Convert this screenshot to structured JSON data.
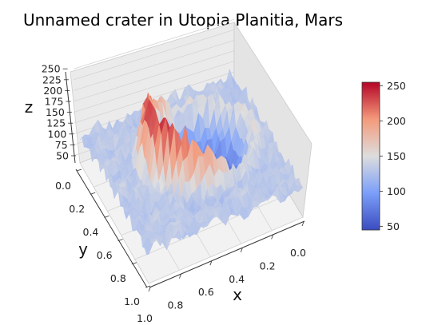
{
  "chart_data": {
    "type": "surface",
    "title": "Unnamed crater in Utopia Planitia, Mars",
    "xlabel": "x",
    "ylabel": "y",
    "zlabel": "z",
    "xlim": [
      0,
      1
    ],
    "ylim": [
      0,
      1
    ],
    "zlim": [
      40,
      255
    ],
    "colormap": "coolwarm",
    "grid": true,
    "x_ticks": [
      "0.0",
      "0.2",
      "0.4",
      "0.6",
      "0.8",
      "1.0"
    ],
    "y_ticks": [
      "0.0",
      "0.2",
      "0.4",
      "0.6",
      "0.8",
      "1.0"
    ],
    "z_ticks": [
      "50",
      "75",
      "100",
      "125",
      "150",
      "175",
      "200",
      "225",
      "250"
    ],
    "colorbar": {
      "min": 45,
      "max": 255,
      "ticks": [
        "50",
        "100",
        "150",
        "200",
        "250"
      ],
      "placement": "right"
    },
    "colors": {
      "low": "#3b4cc0",
      "mid": "#dddddd",
      "high": "#b40426"
    },
    "surface_description_values": {
      "crater_floor": 60,
      "rim_ridge_peak": 250,
      "background_level": 130
    }
  }
}
